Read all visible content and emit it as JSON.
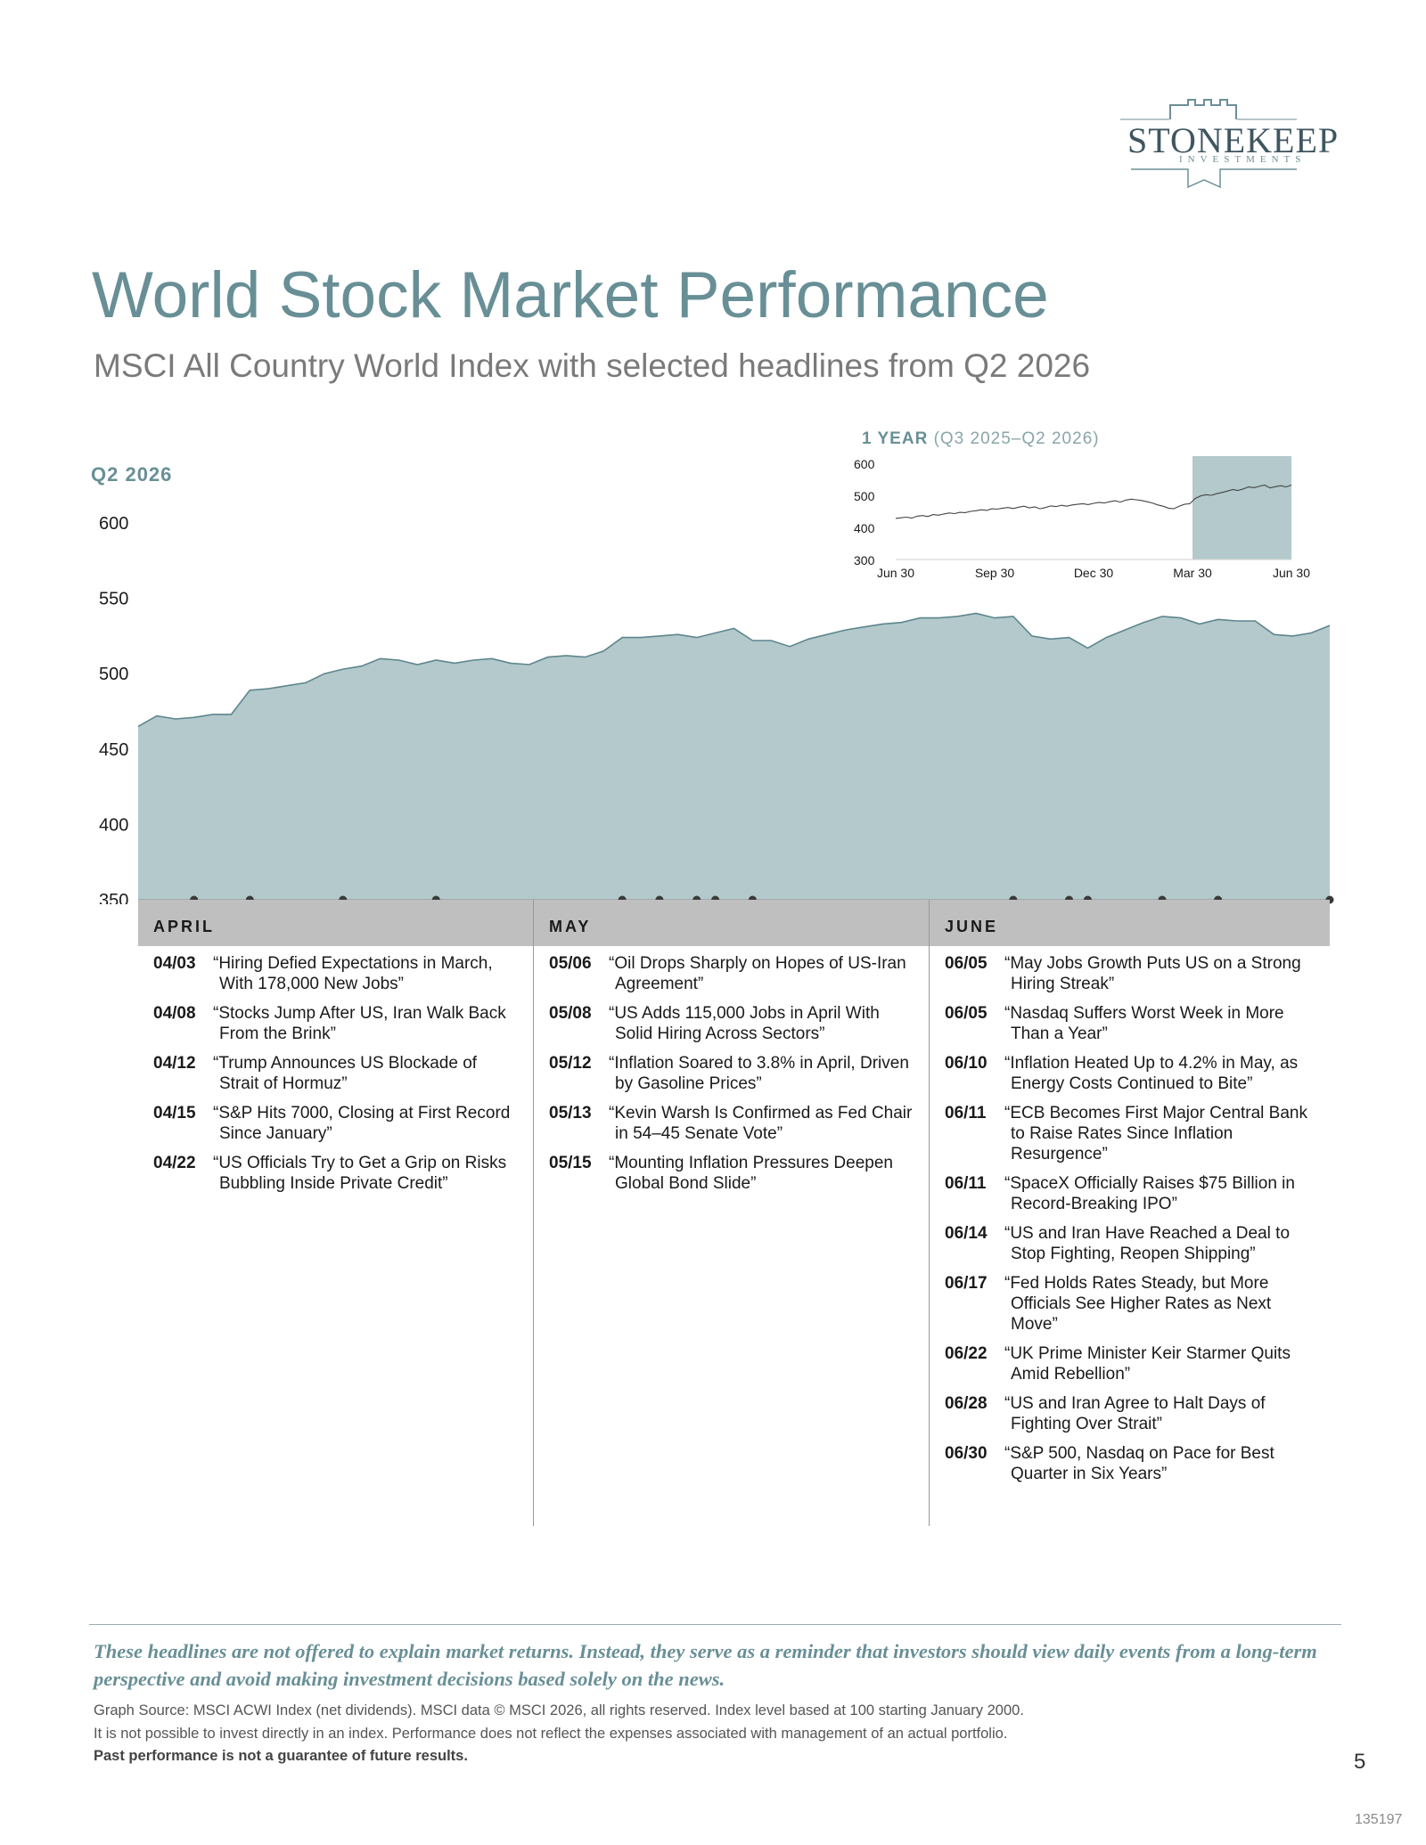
{
  "brand": {
    "name": "STONEKEEP",
    "tagline": "INVESTMENTS",
    "color": "#3f5660",
    "accent": "#6d8f96"
  },
  "page": {
    "title": "World Stock Market Performance",
    "subtitle": "MSCI All Country World Index with selected headlines from Q2 2026",
    "number": "5",
    "doc_code": "135197"
  },
  "colors": {
    "title": "#688f96",
    "area_fill": "#b3c9cc",
    "area_line": "#5e868d",
    "month_bar": "#bfbfbf",
    "dot": "#3a3a3a"
  },
  "chart_data": [
    {
      "type": "area",
      "title": "Q2 2026",
      "ylim": [
        350,
        600
      ],
      "yticks": [
        "600",
        "550",
        "500",
        "450",
        "400",
        "350"
      ],
      "x": [
        "03/31",
        "04/01",
        "04/02",
        "04/03",
        "04/06",
        "04/07",
        "04/08",
        "04/09",
        "04/10",
        "04/13",
        "04/14",
        "04/15",
        "04/16",
        "04/17",
        "04/20",
        "04/21",
        "04/22",
        "04/23",
        "04/24",
        "04/27",
        "04/28",
        "04/29",
        "04/30",
        "05/01",
        "05/04",
        "05/05",
        "05/06",
        "05/07",
        "05/08",
        "05/11",
        "05/12",
        "05/13",
        "05/14",
        "05/15",
        "05/18",
        "05/19",
        "05/20",
        "05/21",
        "05/22",
        "05/26",
        "05/27",
        "05/28",
        "05/29",
        "06/01",
        "06/02",
        "06/03",
        "06/04",
        "06/05",
        "06/08",
        "06/09",
        "06/10",
        "06/11",
        "06/12",
        "06/15",
        "06/16",
        "06/17",
        "06/18",
        "06/19",
        "06/22",
        "06/23",
        "06/24",
        "06/25",
        "06/26",
        "06/29",
        "06/30"
      ],
      "values": [
        465,
        472,
        470,
        471,
        473,
        473,
        489,
        490,
        492,
        494,
        500,
        503,
        505,
        510,
        509,
        506,
        509,
        507,
        509,
        510,
        507,
        506,
        511,
        512,
        511,
        515,
        524,
        524,
        525,
        526,
        524,
        527,
        530,
        522,
        522,
        518,
        523,
        526,
        529,
        531,
        533,
        534,
        537,
        537,
        538,
        540,
        537,
        538,
        525,
        523,
        524,
        517,
        524,
        529,
        534,
        538,
        537,
        533,
        536,
        535,
        535,
        526,
        525,
        527,
        532
      ],
      "events": [
        "04/03",
        "04/08",
        "04/12",
        "04/15",
        "04/22",
        "05/06",
        "05/08",
        "05/12",
        "05/13",
        "05/15",
        "06/05",
        "06/10",
        "06/11",
        "06/14",
        "06/17",
        "06/22",
        "06/28",
        "06/30"
      ],
      "months": [
        "APRIL",
        "MAY",
        "JUNE"
      ]
    },
    {
      "type": "line",
      "title": "1 YEAR",
      "title_detail": "(Q3 2025–Q2 2026)",
      "ylim": [
        300,
        600
      ],
      "yticks": [
        "600",
        "500",
        "400",
        "300"
      ],
      "xticks": [
        "Jun 30",
        "Sep 30",
        "Dec 30",
        "Mar 30",
        "Jun 30"
      ],
      "values": [
        428,
        430,
        432,
        429,
        435,
        437,
        434,
        440,
        438,
        442,
        445,
        443,
        447,
        446,
        450,
        452,
        455,
        453,
        458,
        457,
        460,
        462,
        459,
        463,
        466,
        461,
        464,
        458,
        462,
        467,
        465,
        469,
        466,
        470,
        472,
        474,
        471,
        475,
        478,
        476,
        480,
        483,
        479,
        485,
        488,
        486,
        484,
        480,
        476,
        470,
        466,
        460,
        458,
        466,
        472,
        474,
        490,
        498,
        502,
        500,
        505,
        509,
        513,
        518,
        515,
        520,
        526,
        524,
        528,
        532,
        523,
        527,
        530,
        526,
        532
      ],
      "highlight": {
        "from": "Mar 30",
        "to": "Jun 30"
      }
    }
  ],
  "headlines": {
    "april": [
      {
        "date": "04/03",
        "text": "“Hiring Defied Expectations in March, With 178,000 New Jobs”"
      },
      {
        "date": "04/08",
        "text": "“Stocks Jump After US, Iran Walk Back From the Brink”"
      },
      {
        "date": "04/12",
        "text": "“Trump Announces US Blockade of Strait of Hormuz”"
      },
      {
        "date": "04/15",
        "text": "“S&P Hits 7000, Closing at First Record Since January”"
      },
      {
        "date": "04/22",
        "text": "“US Officials Try to Get a Grip on Risks Bubbling Inside Private Credit”"
      }
    ],
    "may": [
      {
        "date": "05/06",
        "text": "“Oil Drops Sharply on Hopes of US-Iran Agreement”"
      },
      {
        "date": "05/08",
        "text": "“US Adds 115,000 Jobs in April With Solid Hiring Across Sectors”"
      },
      {
        "date": "05/12",
        "text": "“Inflation Soared to 3.8% in April, Driven by Gasoline Prices”"
      },
      {
        "date": "05/13",
        "text": "“Kevin Warsh Is Confirmed as Fed Chair in 54–45 Senate Vote”"
      },
      {
        "date": "05/15",
        "text": "“Mounting Inflation Pressures Deepen Global Bond Slide”"
      }
    ],
    "june": [
      {
        "date": "06/05",
        "text": "“May Jobs Growth Puts US on a Strong Hiring Streak”"
      },
      {
        "date": "06/05",
        "text": "“Nasdaq Suffers Worst Week in More Than a Year”"
      },
      {
        "date": "06/10",
        "text": "“Inflation Heated Up to 4.2% in May, as Energy Costs Continued to Bite”"
      },
      {
        "date": "06/11",
        "text": "“ECB Becomes First Major Central Bank to Raise Rates Since Inflation Resurgence”"
      },
      {
        "date": "06/11",
        "text": "“SpaceX Officially Raises $75 Billion in Record-Breaking IPO”"
      },
      {
        "date": "06/14",
        "text": "“US and Iran Have Reached a Deal to Stop Fighting, Reopen Shipping”"
      },
      {
        "date": "06/17",
        "text": "“Fed Holds Rates Steady, but More Officials See Higher Rates as Next Move”"
      },
      {
        "date": "06/22",
        "text": "“UK Prime Minister Keir Starmer Quits Amid Rebellion”"
      },
      {
        "date": "06/28",
        "text": "“US and Iran Agree to Halt Days of Fighting Over Strait”"
      },
      {
        "date": "06/30",
        "text": "“S&P 500, Nasdaq on Pace for Best Quarter in Six Years”"
      }
    ]
  },
  "footer": {
    "disclaimer": "These headlines are not offered to explain market returns. Instead, they serve as a reminder that investors should view daily events from a long-term perspective and avoid making investment decisions based solely on the news.",
    "source": "Graph Source: MSCI ACWI Index (net dividends). MSCI data © MSCI 2026, all rights reserved.  Index level based at 100 starting January 2000.",
    "note": "It is not possible to invest directly in an index. Performance does not reflect the expenses associated with management of an actual portfolio.",
    "warning": "Past performance is not a guarantee of future results."
  }
}
